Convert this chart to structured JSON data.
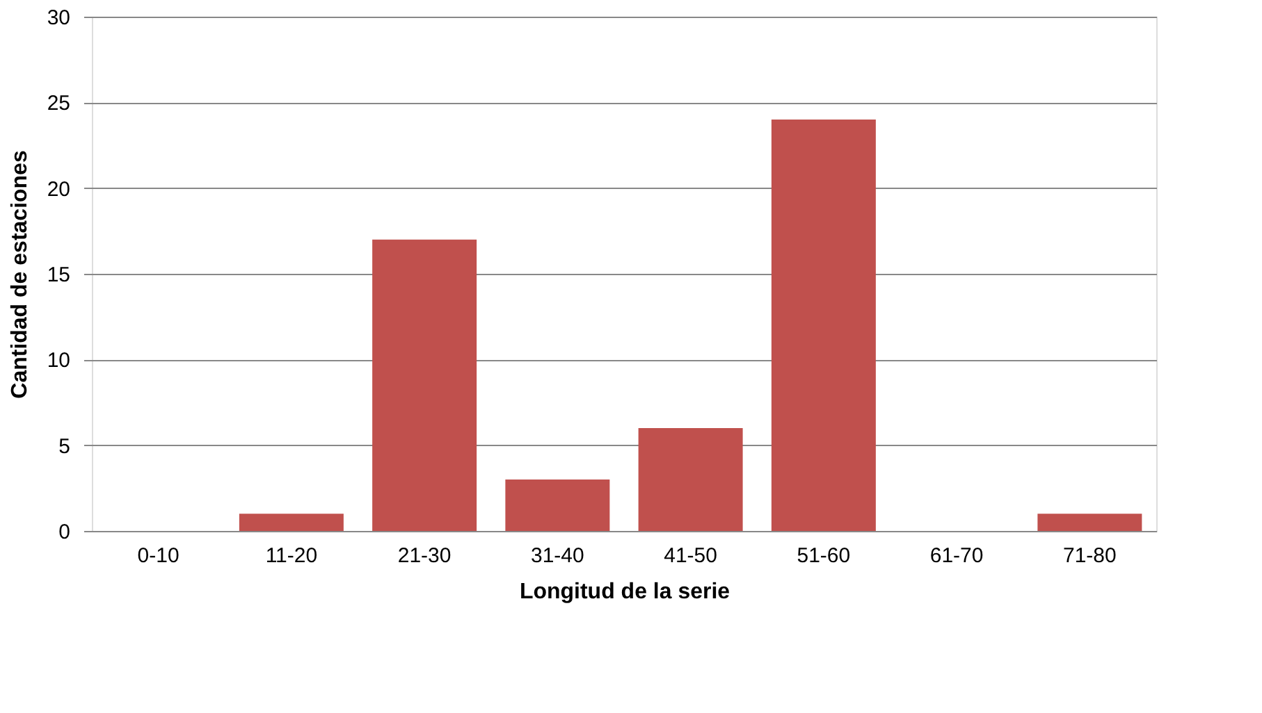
{
  "chart_data": {
    "type": "bar",
    "xlabel": "Longitud de la serie",
    "ylabel": "Cantidad de estaciones",
    "categories": [
      "0-10",
      "11-20",
      "21-30",
      "31-40",
      "41-50",
      "51-60",
      "61-70",
      "71-80"
    ],
    "values": [
      0,
      1,
      17,
      3,
      6,
      24,
      0,
      1
    ],
    "color": "#c0504d",
    "ylim": [
      0,
      30
    ],
    "yticks": [
      0,
      5,
      10,
      15,
      20,
      25,
      30
    ],
    "grid": "y"
  }
}
